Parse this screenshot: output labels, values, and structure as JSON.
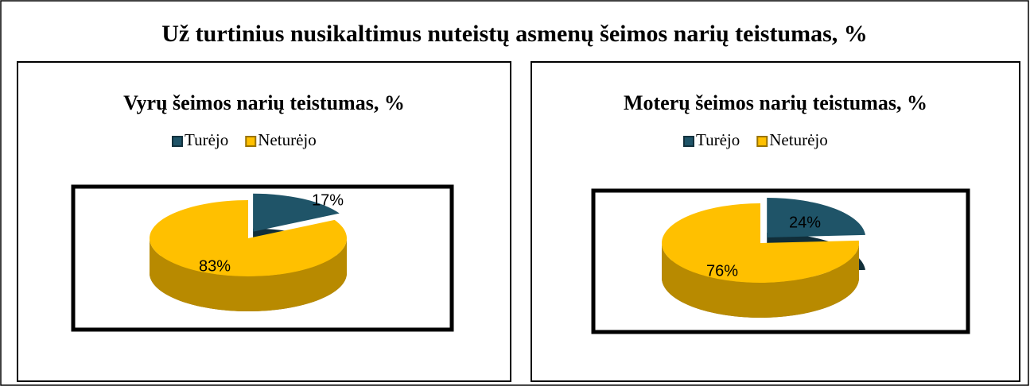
{
  "title": "Už turtinius nusikaltimus nuteistų asmenų šeimos narių teistumas, %",
  "chart_data": [
    {
      "type": "pie",
      "title": "Vyrų šeimos narių teistumas, %",
      "categories": [
        "Turėjo",
        "Neturėjo"
      ],
      "values": [
        17,
        83
      ],
      "value_labels": [
        "17%",
        "83%"
      ],
      "colors": [
        "#1f5468",
        "#ffc000"
      ],
      "legend": "top"
    },
    {
      "type": "pie",
      "title": "Moterų šeimos narių teistumas, %",
      "categories": [
        "Turėjo",
        "Neturėjo"
      ],
      "values": [
        24,
        76
      ],
      "value_labels": [
        "24%",
        "76%"
      ],
      "colors": [
        "#1f5468",
        "#ffc000"
      ],
      "legend": "top"
    }
  ]
}
